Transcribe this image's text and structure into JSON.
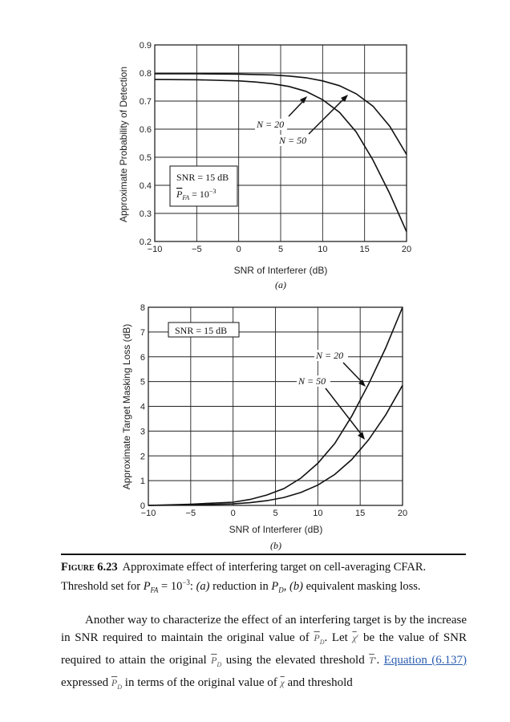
{
  "chart_data": [
    {
      "type": "line",
      "panel": "(a)",
      "xlabel": "SNR of Interferer (dB)",
      "ylabel": "Approximate Probability of Detection",
      "xlim": [
        -10,
        20
      ],
      "ylim": [
        0.2,
        0.9
      ],
      "xticks": [
        "−10",
        "−5",
        "0",
        "5",
        "10",
        "15",
        "20"
      ],
      "yticks": [
        "0.2",
        "0.3",
        "0.4",
        "0.5",
        "0.6",
        "0.7",
        "0.8",
        "0.9"
      ],
      "grid": true,
      "series": [
        {
          "name": "N = 20",
          "x": [
            -10,
            -5,
            0,
            2,
            4,
            6,
            8,
            10,
            12,
            14,
            16,
            18,
            20
          ],
          "y": [
            0.777,
            0.776,
            0.772,
            0.768,
            0.762,
            0.752,
            0.735,
            0.705,
            0.66,
            0.59,
            0.49,
            0.37,
            0.235
          ]
        },
        {
          "name": "N = 50",
          "x": [
            -10,
            -5,
            0,
            4,
            6,
            8,
            10,
            12,
            14,
            16,
            18,
            20
          ],
          "y": [
            0.797,
            0.797,
            0.796,
            0.793,
            0.789,
            0.783,
            0.772,
            0.755,
            0.726,
            0.682,
            0.61,
            0.51
          ]
        }
      ],
      "annotations": {
        "label_n20": "N = 20",
        "label_n50": "N = 50",
        "box_line1": "SNR = 15 dB",
        "box_line2_symbol": "P",
        "box_line2_sub": "FA",
        "box_line2_rest": " = 10",
        "box_line2_exp": "−3"
      }
    },
    {
      "type": "line",
      "panel": "(b)",
      "xlabel": "SNR of Interferer (dB)",
      "ylabel": "Approximate Target Masking Loss (dB)",
      "xlim": [
        -10,
        20
      ],
      "ylim": [
        0,
        8
      ],
      "xticks": [
        "−10",
        "−5",
        "0",
        "5",
        "10",
        "15",
        "20"
      ],
      "yticks": [
        "0",
        "1",
        "2",
        "3",
        "4",
        "5",
        "6",
        "7",
        "8"
      ],
      "grid": true,
      "series": [
        {
          "name": "N = 20",
          "x": [
            -10,
            -5,
            0,
            2,
            4,
            6,
            8,
            10,
            12,
            14,
            16,
            18,
            20
          ],
          "y": [
            0.0,
            0.05,
            0.13,
            0.24,
            0.42,
            0.68,
            1.1,
            1.7,
            2.5,
            3.6,
            4.9,
            6.35,
            8.0
          ]
        },
        {
          "name": "N = 50",
          "x": [
            -10,
            -5,
            0,
            2,
            4,
            6,
            8,
            10,
            12,
            14,
            16,
            18,
            20
          ],
          "y": [
            0.0,
            0.02,
            0.06,
            0.11,
            0.19,
            0.32,
            0.52,
            0.82,
            1.25,
            1.85,
            2.65,
            3.65,
            4.85
          ]
        }
      ],
      "annotations": {
        "label_n20": "N = 20",
        "label_n50": "N = 50",
        "box_line1": "SNR = 15 dB"
      }
    }
  ],
  "caption": {
    "figure_label": "Figure 6.23",
    "text_1": "Approximate effect of interfering target on cell-averaging CFAR.",
    "text_2": "Threshold set for",
    "p_fa": "P",
    "fa_sub": "FA",
    "eq": " = 10",
    "exp": "−3",
    "text_3": ": ",
    "a": "(a)",
    "text_4": " reduction in ",
    "pd": "P",
    "d_sub": "D",
    "text_5": ", ",
    "b": "(b)",
    "text_6": " equivalent masking loss."
  },
  "paragraph": {
    "s1": "Another way to characterize the effect of an interfering target is by the increase in SNR required to maintain the original value of",
    "pd_sym": "P",
    "pd_sub": "D",
    "s2": ". Let",
    "chi_sym": "χ",
    "chi_prime": "′",
    "s3": " be the value of SNR required to attain the original",
    "s4": " using the elevated threshold",
    "t_sym": "T",
    "t_prime": "′",
    "s5": ".",
    "link": "Equation (6.137)",
    "s6": " expressed",
    "s7": " in terms of the original value of",
    "s8": " and threshold"
  }
}
